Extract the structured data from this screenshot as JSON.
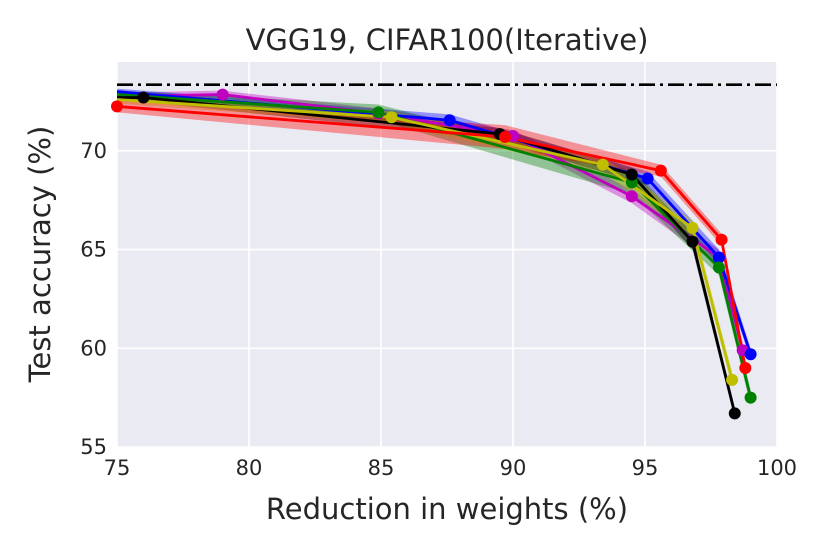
{
  "chart_data": {
    "type": "line",
    "title": "VGG19, CIFAR100(Iterative)",
    "xlabel": "Reduction in weights (%)",
    "ylabel": "Test accuracy (%)",
    "xlim": [
      75,
      100
    ],
    "ylim": [
      55,
      74.5
    ],
    "xticks": [
      75,
      80,
      85,
      90,
      95,
      100
    ],
    "yticks": [
      55,
      60,
      65,
      70
    ],
    "grid": true,
    "reference_line": {
      "y": 73.35,
      "color": "#000000",
      "style": "dash-dot"
    },
    "series": [
      {
        "name": "magenta",
        "color": "#bf00bf",
        "x": [
          75,
          79.0,
          84.9,
          90.0,
          94.5,
          97.8,
          98.7
        ],
        "y": [
          72.75,
          72.85,
          71.9,
          70.75,
          67.7,
          64.6,
          59.9
        ],
        "band": [
          0.2,
          0.2,
          0.25,
          0.3,
          0.35,
          0.4,
          0.4
        ]
      },
      {
        "name": "blue",
        "color": "#0000ff",
        "x": [
          75,
          87.6,
          95.1,
          97.8,
          99.0
        ],
        "y": [
          73.0,
          71.55,
          68.6,
          64.6,
          59.7
        ],
        "band": [
          0.15,
          0.3,
          0.35,
          0.4,
          0.3
        ]
      },
      {
        "name": "green",
        "color": "#008000",
        "x": [
          75,
          84.9,
          94.5,
          97.8,
          99.0
        ],
        "y": [
          72.85,
          71.95,
          68.4,
          64.1,
          57.5
        ],
        "band": [
          0.2,
          0.4,
          0.6,
          0.4,
          0.4
        ]
      },
      {
        "name": "black",
        "color": "#000000",
        "x": [
          75,
          76.0,
          89.5,
          94.5,
          96.8,
          98.4
        ],
        "y": [
          72.7,
          72.7,
          70.85,
          68.8,
          65.4,
          56.7
        ],
        "band": [
          0.2,
          0.2,
          0.3,
          0.35,
          0.4,
          0.3
        ]
      },
      {
        "name": "yellow",
        "color": "#bfbf00",
        "x": [
          75,
          85.4,
          93.4,
          96.8,
          98.3
        ],
        "y": [
          72.6,
          71.7,
          69.3,
          66.1,
          58.4
        ],
        "band": [
          0.2,
          0.3,
          0.4,
          0.4,
          0.4
        ]
      },
      {
        "name": "red",
        "color": "#ff0000",
        "x": [
          75,
          89.7,
          95.6,
          97.9,
          98.8
        ],
        "y": [
          72.25,
          70.7,
          69.0,
          65.5,
          59.0
        ],
        "band": [
          0.3,
          0.6,
          0.3,
          0.3,
          0.3
        ]
      }
    ]
  }
}
